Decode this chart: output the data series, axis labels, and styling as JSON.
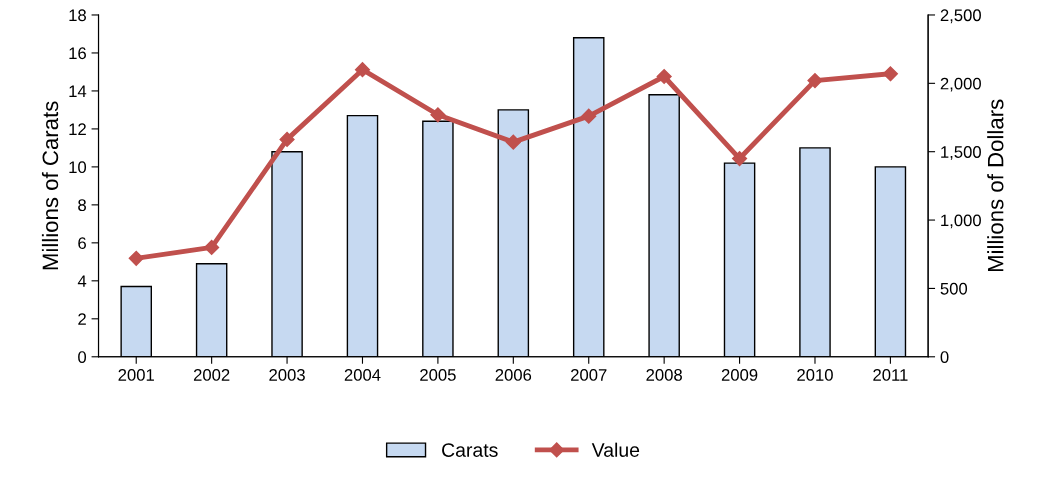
{
  "chart_data": {
    "type": "bar",
    "categories": [
      "2001",
      "2002",
      "2003",
      "2004",
      "2005",
      "2006",
      "2007",
      "2008",
      "2009",
      "2010",
      "2011"
    ],
    "ylabel": "Millions of Carats",
    "y2label": "Millions of Dollars",
    "ylim": [
      0,
      18
    ],
    "yticks": [
      0,
      2,
      4,
      6,
      8,
      10,
      12,
      14,
      16,
      18
    ],
    "y2lim": [
      0,
      2500
    ],
    "y2ticks": [
      {
        "value": 0,
        "label": "0"
      },
      {
        "value": 500,
        "label": "500"
      },
      {
        "value": 1000,
        "label": "1,000"
      },
      {
        "value": 1500,
        "label": "1,500"
      },
      {
        "value": 2000,
        "label": "2,000"
      },
      {
        "value": 2500,
        "label": "2,500"
      }
    ],
    "legend": "bottom",
    "grid": false,
    "series": [
      {
        "name": "Carats",
        "color": "#c6d9f1",
        "values": [
          3.7,
          4.9,
          10.8,
          12.7,
          12.4,
          13.0,
          16.8,
          13.8,
          10.2,
          11.0,
          10.0
        ]
      },
      {
        "name": "Value",
        "type": "line",
        "axis": "y2",
        "color": "#c0504d",
        "marker": "diamond",
        "values": [
          720,
          800,
          1590,
          2100,
          1770,
          1570,
          1760,
          2050,
          1450,
          2020,
          2070
        ]
      }
    ]
  }
}
